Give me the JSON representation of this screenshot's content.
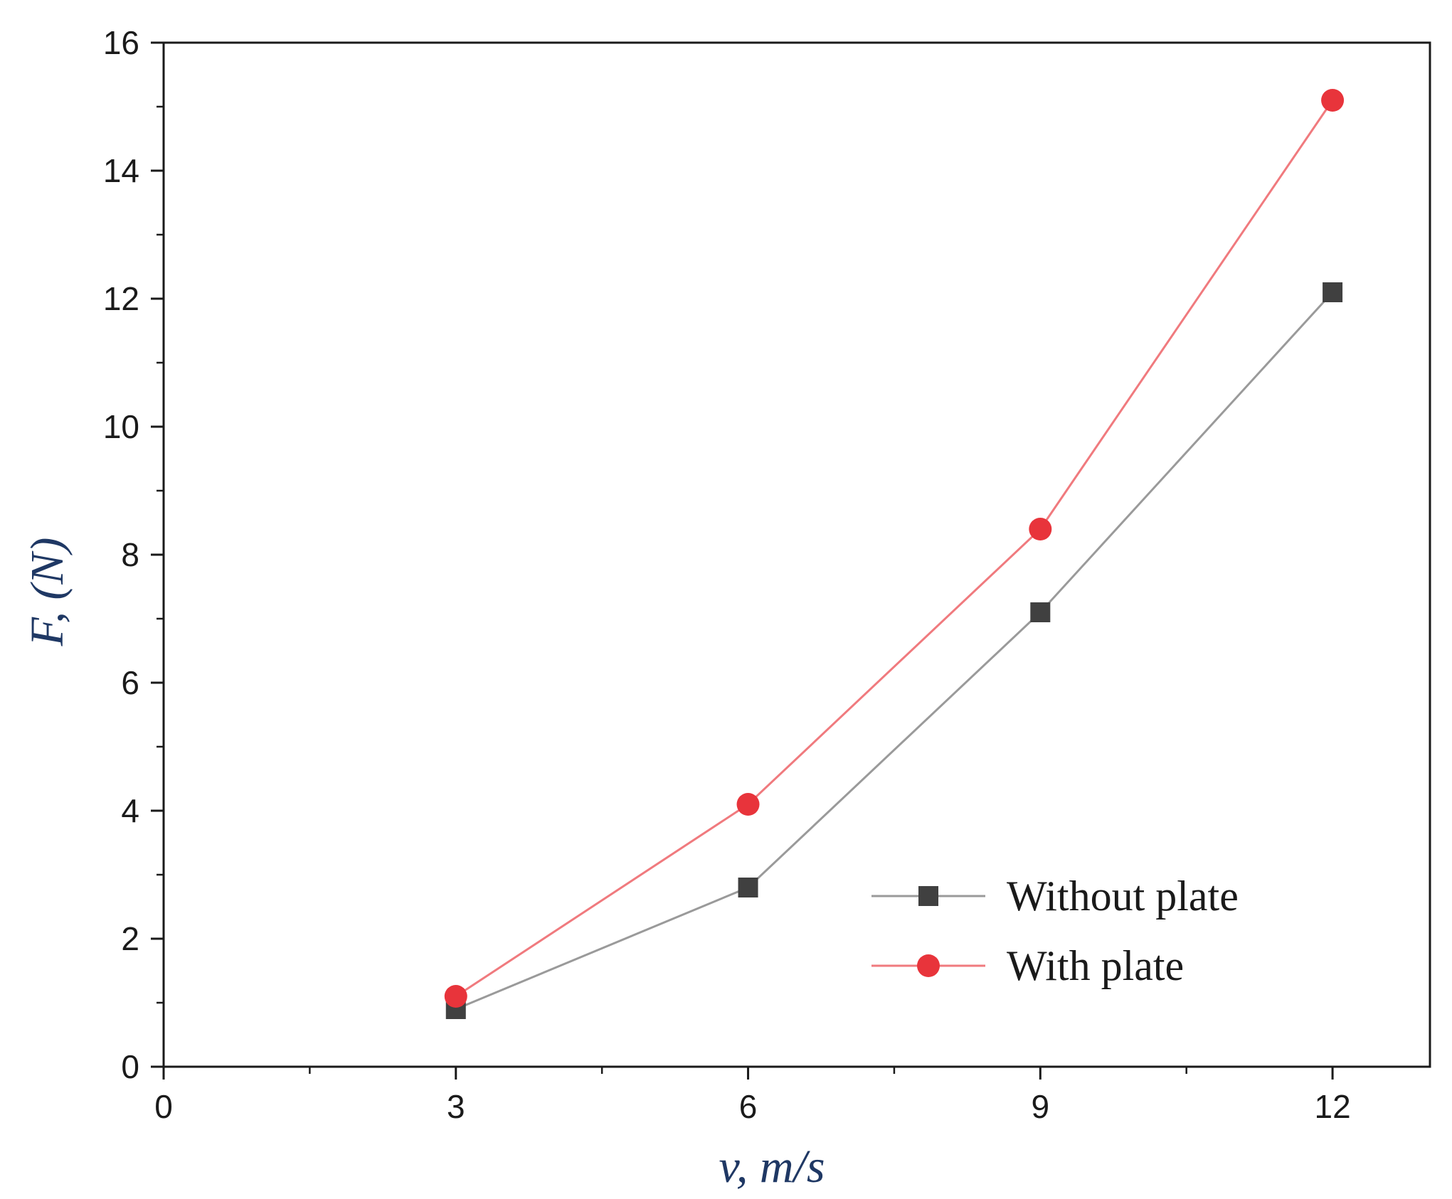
{
  "chart_data": {
    "type": "line",
    "title": "",
    "xlabel": "v, m/s",
    "ylabel": "F, (N)",
    "xlim": [
      0,
      13
    ],
    "ylim": [
      0,
      16
    ],
    "x_ticks": [
      0,
      3,
      6,
      9,
      12
    ],
    "y_ticks": [
      0,
      2,
      4,
      6,
      8,
      10,
      12,
      14,
      16
    ],
    "grid": false,
    "legend_position": "bottom-right",
    "colors": {
      "axis_title": "#1f3864",
      "without": "#404040",
      "with": "#e8343b"
    },
    "series": [
      {
        "name": "Without plate",
        "marker": "square",
        "x": [
          3,
          6,
          9,
          12
        ],
        "y": [
          0.9,
          2.8,
          7.1,
          12.1
        ]
      },
      {
        "name": "With plate",
        "marker": "circle",
        "x": [
          3,
          6,
          9,
          12
        ],
        "y": [
          1.1,
          4.1,
          8.4,
          15.1
        ]
      }
    ]
  }
}
